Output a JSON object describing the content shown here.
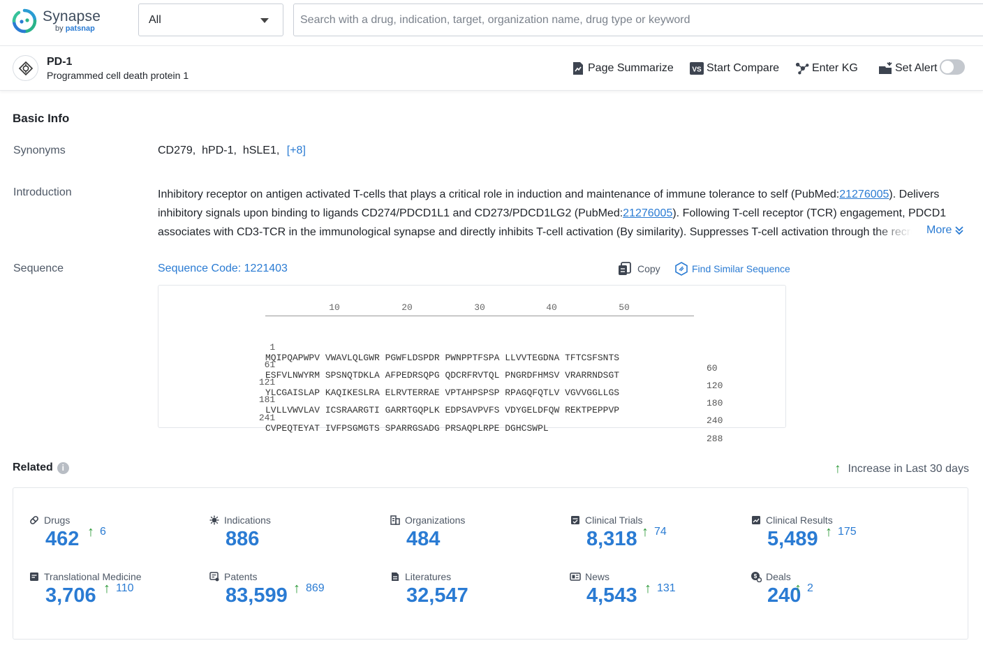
{
  "brand": {
    "name": "Synapse",
    "by": "by",
    "vendor": "patsnap"
  },
  "search": {
    "scope": "All",
    "placeholder": "Search with a drug, indication, target, organization name, drug type or keyword"
  },
  "target": {
    "name": "PD-1",
    "full_name": "Programmed cell death protein 1"
  },
  "actions": {
    "summarize": "Page Summarize",
    "compare": "Start Compare",
    "kg": "Enter KG",
    "alert": "Set Alert",
    "alert_on": false
  },
  "basic_info": {
    "title": "Basic Info",
    "synonyms_label": "Synonyms",
    "synonyms": [
      "CD279,",
      "hPD-1,",
      "hSLE1,"
    ],
    "synonyms_more": "[+8]",
    "intro_label": "Introduction",
    "intro": {
      "t1": "Inhibitory receptor on antigen activated T-cells that plays a critical role in induction and maintenance of immune tolerance to self (PubMed:",
      "link1": "21276005",
      "t2": "). Delivers inhibitory signals upon binding to ligands CD274/PDCD1L1 and CD273/PDCD1LG2 (PubMed:",
      "link2": "21276005",
      "t3": "). Following T-cell receptor (TCR) engagement, PDCD1 associates with CD3-TCR in the immunological synapse and directly inhibits T-cell activation (By similarity). Suppresses T-cell activation through the recruitment"
    },
    "more": "More",
    "sequence_label": "Sequence",
    "sequence_code": "Sequence Code: 1221403",
    "copy": "Copy",
    "find_similar": "Find Similar Sequence",
    "ruler": [
      "10",
      "20",
      "30",
      "40",
      "50"
    ],
    "rows": [
      {
        "start": "1",
        "seq": "MQIPQAPWPV VWAVLQLGWR PGWFLDSPDR PWNPPTFSPA LLVVTEGDNA TFTCSFSNTS",
        "end": "60"
      },
      {
        "start": "61",
        "seq": "ESFVLNWYRM SPSNQTDKLA AFPEDRSQPG QDCRFRVTQL PNGRDFHMSV VRARRNDSGT",
        "end": "120"
      },
      {
        "start": "121",
        "seq": "YLCGAISLAP KAQIKESLRA ELRVTERRAE VPTAHPSPSP RPAGQFQTLV VGVVGGLLGS",
        "end": "180"
      },
      {
        "start": "181",
        "seq": "LVLLVWVLAV ICSRAARGTI GARRTGQPLK EDPSAVPVFS VDYGELDFQW REKTPEPPVP",
        "end": "240"
      },
      {
        "start": "241",
        "seq": "CVPEQTEYAT IVFPSGMGTS SPARRGSADG PRSAQPLRPE DGHCSWPL",
        "end": "288"
      }
    ]
  },
  "related": {
    "title": "Related",
    "info": "i",
    "legend": "Increase in Last 30 days",
    "stats": [
      {
        "label": "Drugs",
        "value": "462",
        "increase": "6",
        "icon": "pill-icon"
      },
      {
        "label": "Indications",
        "value": "886",
        "increase": "",
        "icon": "virus-icon"
      },
      {
        "label": "Organizations",
        "value": "484",
        "increase": "",
        "icon": "building-icon"
      },
      {
        "label": "Clinical Trials",
        "value": "8,318",
        "increase": "74",
        "icon": "clipboard-icon"
      },
      {
        "label": "Clinical Results",
        "value": "5,489",
        "increase": "175",
        "icon": "chart-doc-icon"
      },
      {
        "label": "Translational Medicine",
        "value": "3,706",
        "increase": "110",
        "icon": "doc-icon"
      },
      {
        "label": "Patents",
        "value": "83,599",
        "increase": "869",
        "icon": "patent-icon"
      },
      {
        "label": "Literatures",
        "value": "32,547",
        "increase": "",
        "icon": "book-icon"
      },
      {
        "label": "News",
        "value": "4,543",
        "increase": "131",
        "icon": "news-icon"
      },
      {
        "label": "Deals",
        "value": "240",
        "increase": "2",
        "icon": "deal-icon"
      }
    ]
  },
  "colors": {
    "accent": "#2a7bd3",
    "up": "#2e9a3a",
    "text": "#1f2329",
    "muted": "#4e5866"
  }
}
